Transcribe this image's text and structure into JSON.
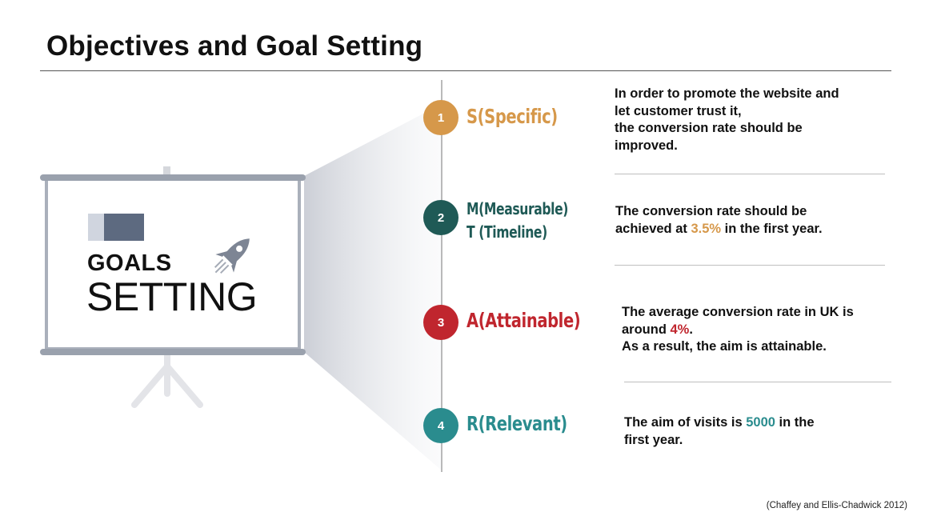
{
  "title": "Objectives and Goal Setting",
  "board": {
    "goals_label": "GOALS",
    "setting_label": "SETTING",
    "icon": "rocket-icon"
  },
  "steps": [
    {
      "number": "1",
      "label": "S(Specific)",
      "color": "#d6984a",
      "desc_lines": [
        "In order to promote the website and",
        "let customer trust it,",
        "the conversion rate should be",
        "improved."
      ]
    },
    {
      "number": "2",
      "label_line1": "M(Measurable)",
      "label_line2": "T (Timeline)",
      "color": "#1f5a56",
      "desc_line1": "The conversion rate should be",
      "desc_line2_pre": "achieved at ",
      "desc_line2_value": "3.5%",
      "desc_line2_post": " in the first year."
    },
    {
      "number": "3",
      "label": "A(Attainable)",
      "color": "#c0262e",
      "desc_line1": "The average conversion rate in UK is",
      "desc_line2_pre": "around ",
      "desc_line2_value": "4%",
      "desc_line2_post": ".",
      "desc_line3": "As a result, the aim is attainable."
    },
    {
      "number": "4",
      "label": "R(Relevant)",
      "color": "#2a8c8e",
      "desc_line1_pre": "The aim of visits is ",
      "desc_line1_value": "5000",
      "desc_line1_post": " in the",
      "desc_line2": "first year."
    }
  ],
  "citation": "(Chaffey and Ellis-Chadwick 2012)"
}
